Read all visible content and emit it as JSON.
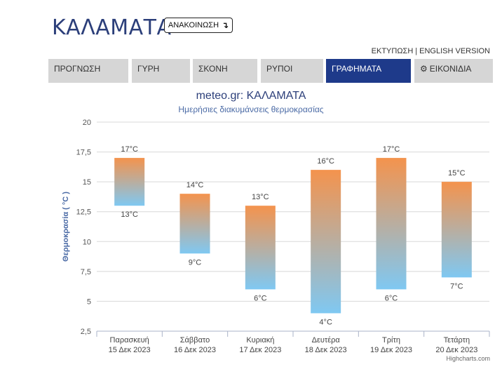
{
  "header": {
    "city": "ΚΑΛΑΜΑΤΑ",
    "announcement_label": "ΑΝΑΚΟΙΝΩΣΗ",
    "announcement_icon": "↴",
    "print_link": "ΕΚΤΥΠΩΣΗ",
    "english_link": "ENGLISH VERSION"
  },
  "tabs": [
    {
      "label": "ΠΡΟΓΝΩΣΗ",
      "active": false
    },
    {
      "label": "ΓΥΡΗ",
      "active": false
    },
    {
      "label": "ΣΚΟΝΗ",
      "active": false
    },
    {
      "label": "ΡΥΠΟΙ",
      "active": false
    },
    {
      "label": "ΓΡΑΦΗΜΑΤΑ",
      "active": true
    },
    {
      "label": "ΕΙΚΟΝΙΔΙΑ",
      "active": false,
      "icon": "gear-icon"
    }
  ],
  "chart_data": {
    "type": "bar",
    "subtype": "columnrange",
    "title": "meteo.gr: ΚΑΛΑΜΑΤΑ",
    "subtitle": "Ημερήσιες διακυμάνσεις θερμοκρασίας",
    "ylabel": "Θερμοκρασία ( °C )",
    "ylim": [
      2.5,
      20
    ],
    "yticks": [
      "2,5",
      "5",
      "7,5",
      "10",
      "12,5",
      "15",
      "17,5",
      "20"
    ],
    "grid": true,
    "colors": {
      "high": "#f4934d",
      "low": "#7fc8f2"
    },
    "categories": [
      {
        "day": "Παρασκευή",
        "date": "15 Δεκ 2023"
      },
      {
        "day": "Σάββατο",
        "date": "16 Δεκ 2023"
      },
      {
        "day": "Κυριακή",
        "date": "17 Δεκ 2023"
      },
      {
        "day": "Δευτέρα",
        "date": "18 Δεκ 2023"
      },
      {
        "day": "Τρίτη",
        "date": "19 Δεκ 2023"
      },
      {
        "day": "Τετάρτη",
        "date": "20 Δεκ 2023"
      }
    ],
    "series": [
      {
        "low": [
          13,
          9,
          6,
          4,
          6,
          7
        ],
        "high": [
          17,
          14,
          13,
          16,
          17,
          15
        ]
      }
    ],
    "high_labels": [
      "17°C",
      "14°C",
      "13°C",
      "16°C",
      "17°C",
      "15°C"
    ],
    "low_labels": [
      "13°C",
      "9°C",
      "6°C",
      "4°C",
      "6°C",
      "7°C"
    ]
  },
  "credits": "Highcharts.com"
}
